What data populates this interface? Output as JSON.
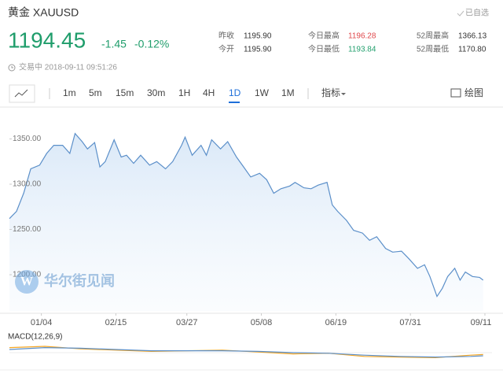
{
  "header": {
    "title": "黄金 XAUUSD",
    "watch": "已自选",
    "price": "1194.45",
    "change": "-1.45",
    "change_pct": "-0.12%",
    "status": "交易中 2018-09-11 09:51:26",
    "stats": [
      {
        "label": "昨收",
        "value": "1195.90"
      },
      {
        "label": "今开",
        "value": "1195.90"
      },
      {
        "label": "今日最高",
        "value": "1196.28"
      },
      {
        "label": "今日最低",
        "value": "1193.84"
      },
      {
        "label": "52周最高",
        "value": "1366.13"
      },
      {
        "label": "52周最低",
        "value": "1170.80"
      }
    ]
  },
  "toolbar": {
    "intervals": [
      "1m",
      "5m",
      "15m",
      "30m",
      "1H",
      "4H",
      "1D",
      "1W",
      "1M"
    ],
    "indicator": "指标",
    "draw": "绘图"
  },
  "watermark": "华尔街见闻",
  "chart_data": [
    {
      "type": "area",
      "color": "#5b8fc9",
      "x": [
        -14,
        -10,
        -6,
        -2,
        3,
        7,
        11,
        16,
        20,
        23,
        27,
        30,
        34,
        37,
        40,
        45,
        49,
        52,
        56,
        60,
        65,
        69,
        74,
        78,
        83,
        85,
        89,
        94,
        97,
        100,
        105,
        109,
        114,
        118,
        122,
        127,
        131,
        135,
        139,
        144,
        147,
        152,
        156,
        160,
        165,
        168,
        171,
        176,
        180,
        185,
        189,
        193,
        198,
        202,
        207,
        211,
        216,
        220,
        223,
        227,
        230,
        233,
        237,
        240,
        243,
        247,
        251,
        253
      ],
      "values": [
        1262,
        1270,
        1290,
        1317,
        1321,
        1334,
        1343,
        1343,
        1334,
        1356,
        1347,
        1339,
        1346,
        1319,
        1325,
        1349,
        1330,
        1332,
        1323,
        1332,
        1321,
        1325,
        1317,
        1325,
        1343,
        1352,
        1332,
        1343,
        1332,
        1349,
        1339,
        1347,
        1330,
        1319,
        1308,
        1312,
        1305,
        1290,
        1295,
        1298,
        1302,
        1296,
        1295,
        1299,
        1302,
        1277,
        1270,
        1260,
        1249,
        1246,
        1238,
        1242,
        1229,
        1225,
        1226,
        1218,
        1207,
        1211,
        1198,
        1176,
        1185,
        1198,
        1207,
        1194,
        1203,
        1198,
        1197,
        1194
      ],
      "xlim": [
        -14,
        258
      ],
      "ylim": [
        1160,
        1380
      ],
      "xticks": [
        {
          "value": 4,
          "label": "01/04"
        },
        {
          "value": 46,
          "label": "02/15"
        },
        {
          "value": 86,
          "label": "03/27"
        },
        {
          "value": 128,
          "label": "05/08"
        },
        {
          "value": 170,
          "label": "06/19"
        },
        {
          "value": 212,
          "label": "07/31"
        },
        {
          "value": 254,
          "label": "09/11"
        }
      ],
      "yticks": [
        {
          "value": 1200,
          "label": "1200.00"
        },
        {
          "value": 1250,
          "label": "1250.00"
        },
        {
          "value": 1300,
          "label": "1300.00"
        },
        {
          "value": 1350,
          "label": "1350.00"
        }
      ]
    },
    {
      "type": "line",
      "title": "MACD(12,26,9)",
      "xlim": [
        -14,
        258
      ],
      "ylim": [
        -20,
        20
      ],
      "x": [
        -14,
        6,
        26,
        46,
        66,
        86,
        106,
        126,
        146,
        166,
        186,
        206,
        226,
        246,
        253
      ],
      "series": [
        {
          "color": "#f5a623",
          "values": [
            8,
            10,
            6,
            4,
            2,
            3,
            4,
            1,
            -2,
            -1,
            -6,
            -7,
            -8,
            -4,
            -3
          ]
        },
        {
          "color": "#5b8fc9",
          "values": [
            5,
            8,
            7,
            5,
            3,
            3,
            3,
            2,
            0,
            -1,
            -4,
            -6,
            -7,
            -6,
            -5
          ]
        }
      ]
    }
  ]
}
